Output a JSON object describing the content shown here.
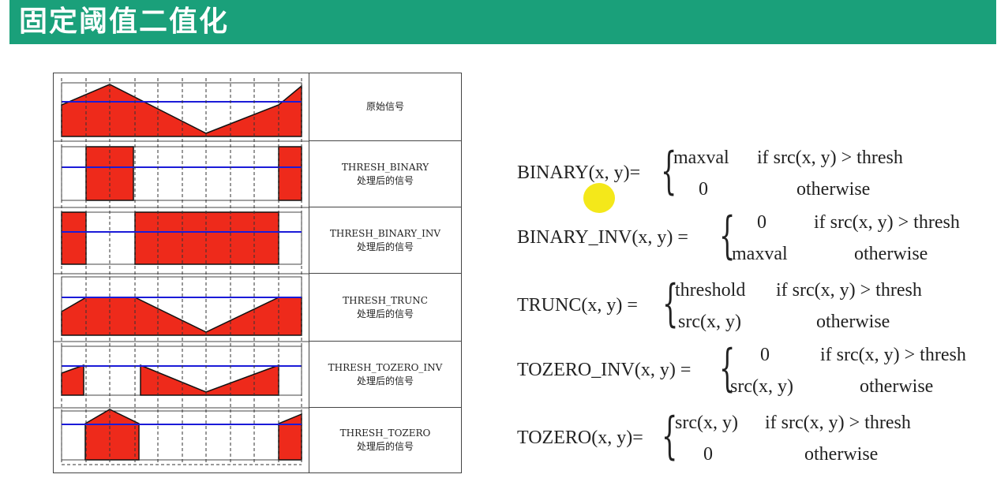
{
  "header": {
    "title": "固定阈值二值化",
    "color": "#1aa07a"
  },
  "panel": {
    "rows": [
      {
        "en": "",
        "cn": "原始信号"
      },
      {
        "en": "THRESH_BINARY",
        "cn": "处理后的信号"
      },
      {
        "en": "THRESH_BINARY_INV",
        "cn": "处理后的信号"
      },
      {
        "en": "THRESH_TRUNC",
        "cn": "处理后的信号"
      },
      {
        "en": "THRESH_TOZERO_INV",
        "cn": "处理后的信号"
      },
      {
        "en": "THRESH_TOZERO",
        "cn": "处理后的信号"
      }
    ],
    "fill_color": "#ee2a1b",
    "threshold_color": "#1b1bd8"
  },
  "formulas": [
    {
      "lhs": "BINARY(x, y)=",
      "case1_val": "maxval",
      "case1_cond": "if src(x, y) > thresh",
      "case2_val": "0",
      "case2_cond": "otherwise"
    },
    {
      "lhs": "BINARY_INV(x, y) =",
      "case1_val": "0",
      "case1_cond": "if src(x, y) > thresh",
      "case2_val": "maxval",
      "case2_cond": "otherwise"
    },
    {
      "lhs": "TRUNC(x, y) =",
      "case1_val": "threshold",
      "case1_cond": "if src(x, y) > thresh",
      "case2_val": "src(x, y)",
      "case2_cond": "otherwise"
    },
    {
      "lhs": "TOZERO_INV(x, y) =",
      "case1_val": "0",
      "case1_cond": "if src(x, y) > thresh",
      "case2_val": "src(x, y)",
      "case2_cond": "otherwise"
    },
    {
      "lhs": "TOZERO(x, y)=",
      "case1_val": "src(x, y)",
      "case1_cond": "if src(x, y) > thresh",
      "case2_val": "0",
      "case2_cond": "otherwise"
    }
  ]
}
